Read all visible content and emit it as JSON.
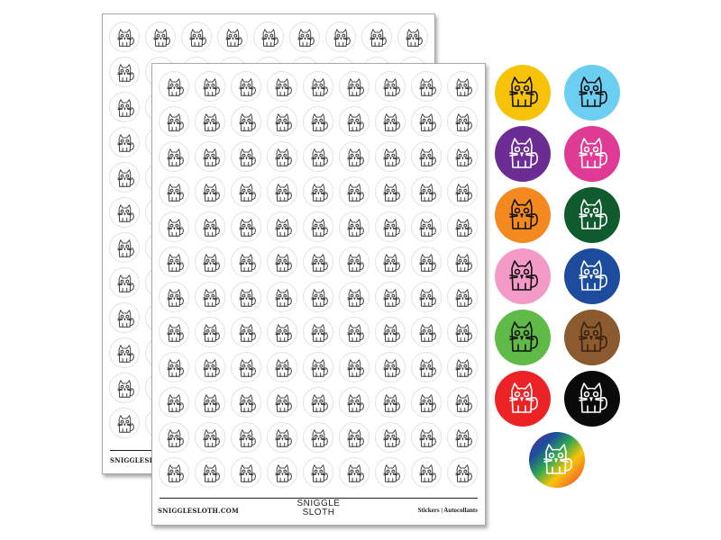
{
  "sheet": {
    "website": "SNIGGLESLOTH.COM",
    "logo_line1": "SNIGGLE",
    "logo_line2": "SLOTH",
    "tagline": "Stickers | Autocollants",
    "columns": 9,
    "rows": 12
  },
  "color_stickers": [
    {
      "bg": "#f7c309",
      "line": "#111111"
    },
    {
      "bg": "#6ccff2",
      "line": "#111111"
    },
    {
      "bg": "#6b2d93",
      "line": "#ffffff"
    },
    {
      "bg": "#df3b94",
      "line": "#ffffff"
    },
    {
      "bg": "#f4891f",
      "line": "#111111"
    },
    {
      "bg": "#0f5b2e",
      "line": "#ffffff"
    },
    {
      "bg": "#f39ac6",
      "line": "#111111"
    },
    {
      "bg": "#1d4c9e",
      "line": "#ffffff"
    },
    {
      "bg": "#5fba47",
      "line": "#111111"
    },
    {
      "bg": "#8b5a2e",
      "line": "#3a2110"
    },
    {
      "bg": "#ec2226",
      "line": "#ffffff"
    },
    {
      "bg": "#0a0a0a",
      "line": "#ffffff"
    },
    {
      "bg": "rainbow",
      "line": "#ffffff"
    }
  ]
}
